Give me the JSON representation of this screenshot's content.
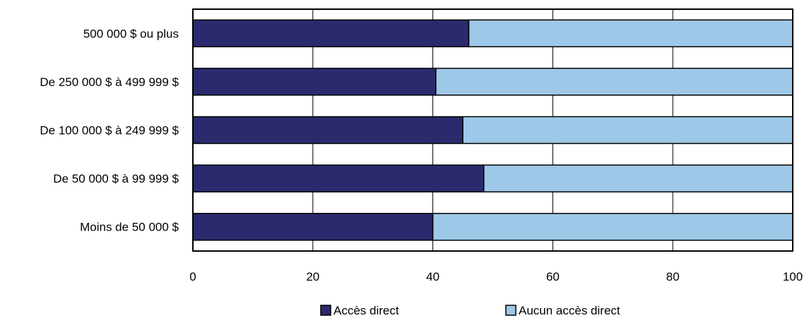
{
  "chart_data": {
    "type": "bar",
    "orientation": "horizontal",
    "stacked": true,
    "categories": [
      "500 000 $ ou plus",
      "De 250 000 $ à 499 999 $",
      "De 100 000 $ à 249 999 $",
      "De 50 000 $ à 99 999 $",
      "Moins de 50 000 $"
    ],
    "series": [
      {
        "name": "Accès direct",
        "color": "#2b2a6e",
        "values": [
          46,
          40.5,
          45,
          48.5,
          40
        ]
      },
      {
        "name": "Aucun accès direct",
        "color": "#9ec8e8",
        "values": [
          54,
          59.5,
          55,
          51.5,
          60
        ]
      }
    ],
    "xlim": [
      0,
      100
    ],
    "xticks": [
      "0",
      "20",
      "40",
      "60",
      "80",
      "100"
    ],
    "grid": true,
    "legend_position": "bottom"
  }
}
